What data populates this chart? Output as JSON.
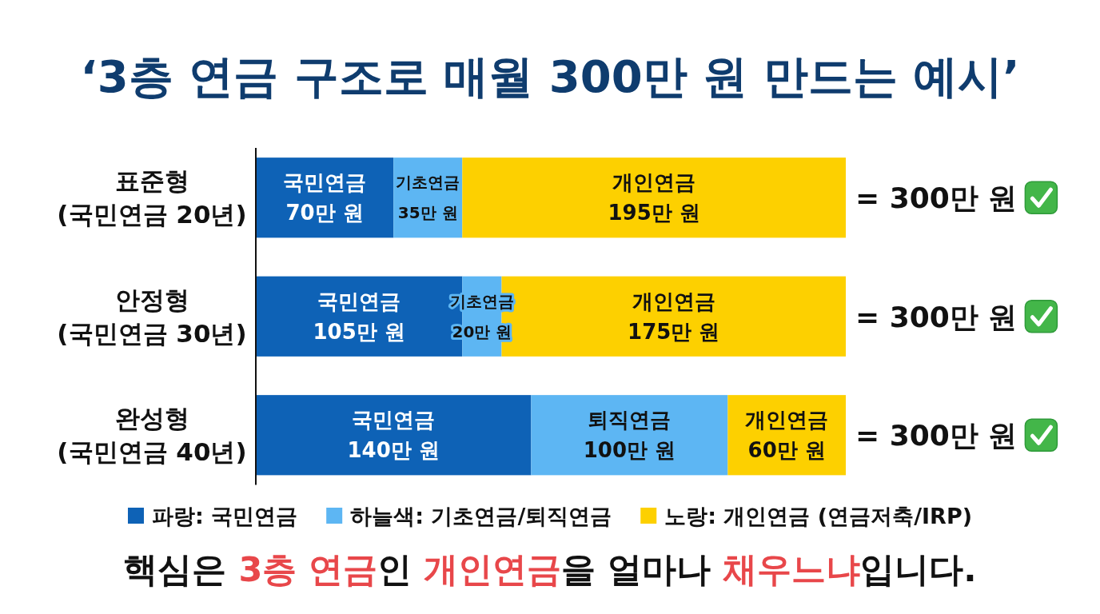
{
  "chart_data": {
    "type": "bar",
    "orientation": "horizontal",
    "stacked": true,
    "title": "‘3층 연금 구조로 매월 300만 원 만드는 예시’",
    "categories": [
      "표준형 (국민연금 20년)",
      "안정형 (국민연금 30년)",
      "완성형 (국민연금 40년)"
    ],
    "series": [
      {
        "name": "파랑: 국민연금",
        "color": "#0e62b6",
        "values": [
          70,
          105,
          140
        ],
        "value_labels": [
          "국민연금 70만 원",
          "국민연금 105만 원",
          "국민연금 140만 원"
        ]
      },
      {
        "name": "하늘색: 기초연금/퇴직연금",
        "color": "#5db6f3",
        "values": [
          35,
          20,
          100
        ],
        "value_labels": [
          "기초연금 35만 원",
          "기초연금 20만 원",
          "퇴직연금 100만 원"
        ]
      },
      {
        "name": "노랑: 개인연금 (연금저축/IRP)",
        "color": "#fdd000",
        "values": [
          195,
          175,
          60
        ],
        "value_labels": [
          "개인연금 195만 원",
          "개인연금 175만 원",
          "개인연금 60만 원"
        ]
      }
    ],
    "totals": [
      "= 300만 원",
      "= 300만 원",
      "= 300만 원"
    ],
    "xlim": [
      0,
      300
    ],
    "tick_labels": "y",
    "legend": "bottom",
    "annotations": [
      "핵심은 **3층 연금**인 **개인연금**을 얼마나 **채우느냐**입니다."
    ]
  }
}
